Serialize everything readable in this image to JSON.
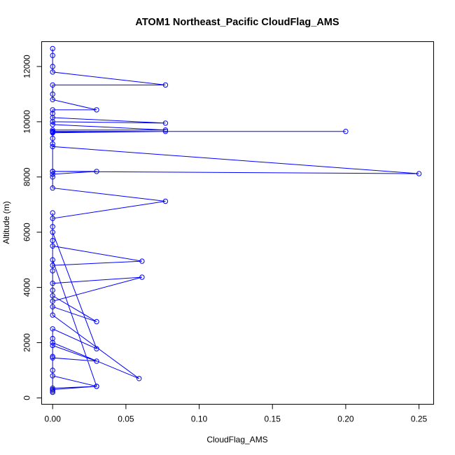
{
  "chart_data": {
    "type": "line",
    "title": "ATOM1 Northeast_Pacific CloudFlag_AMS",
    "xlabel": "CloudFlag_AMS",
    "ylabel": "Altitude (m)",
    "xlim": [
      -0.0075,
      0.26
    ],
    "ylim": [
      -230,
      12900
    ],
    "x_ticks": [
      0.0,
      0.05,
      0.1,
      0.15,
      0.2,
      0.25
    ],
    "x_tick_labels": [
      "0.00",
      "0.05",
      "0.10",
      "0.15",
      "0.20",
      "0.25"
    ],
    "y_ticks": [
      0,
      2000,
      4000,
      6000,
      8000,
      10000,
      12000
    ],
    "y_tick_labels": [
      "0",
      "2000",
      "4000",
      "6000",
      "8000",
      "10000",
      "12000"
    ],
    "grid": false,
    "legend": "none",
    "series_color": "#0000ff",
    "series": [
      {
        "x": [
          0,
          0,
          0,
          0,
          0.03,
          0,
          0,
          0,
          0.03,
          0,
          0,
          0,
          0.03,
          0,
          0,
          0,
          0.03,
          0,
          0,
          0,
          0.061,
          0,
          0,
          0,
          0.061,
          0,
          0,
          0,
          0.059,
          0,
          0,
          0,
          0.03,
          0,
          0,
          0,
          0.077,
          0,
          0,
          0,
          0.25,
          0,
          0,
          0,
          0.03,
          0,
          0,
          0,
          0.2,
          0,
          0,
          0.077,
          0,
          0,
          0.077,
          0,
          0,
          0.077,
          0,
          0,
          0,
          0.03,
          0,
          0,
          0,
          0.077,
          0,
          0,
          0,
          0
        ],
        "y": [
          200,
          250,
          300,
          350,
          420,
          800,
          1000,
          1450,
          1330,
          1900,
          2150,
          2500,
          1780,
          6000,
          6700,
          3300,
          2760,
          3700,
          3900,
          4150,
          4370,
          3500,
          4600,
          4800,
          4950,
          5500,
          5700,
          3000,
          700,
          2000,
          1500,
          300,
          420,
          5000,
          6200,
          6500,
          7120,
          7600,
          8000,
          8200,
          8120,
          9100,
          9400,
          8200,
          8200,
          8100,
          9200,
          9650,
          9650,
          9650,
          9600,
          9650,
          9630,
          9700,
          9700,
          9900,
          10150,
          9950,
          10000,
          10300,
          10430,
          10430,
          10800,
          11000,
          11330,
          11330,
          11800,
          12000,
          12400,
          12650
        ]
      }
    ]
  }
}
